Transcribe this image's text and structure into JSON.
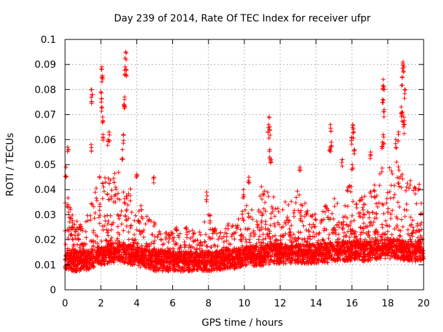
{
  "chart_data": {
    "type": "scatter",
    "title": "Day 239 of 2014, Rate Of TEC Index for receiver ufpr",
    "xlabel": "GPS time / hours",
    "ylabel": "ROTI / TECUs",
    "xlim": [
      0,
      20
    ],
    "ylim": [
      0,
      0.1
    ],
    "x_ticks": [
      0,
      2,
      4,
      6,
      8,
      10,
      12,
      14,
      16,
      18,
      20
    ],
    "y_ticks": [
      0,
      0.01,
      0.02,
      0.03,
      0.04,
      0.05,
      0.06,
      0.07,
      0.08,
      0.09,
      0.1
    ],
    "x_tick_labels": [
      "0",
      "2",
      "4",
      "6",
      "8",
      "10",
      "12",
      "14",
      "16",
      "18",
      "20"
    ],
    "y_tick_labels": [
      "0",
      "0.01",
      "0.02",
      "0.03",
      "0.04",
      "0.05",
      "0.06",
      "0.07",
      "0.08",
      "0.09",
      "0.1"
    ],
    "grid": true,
    "marker": "+",
    "color": "#ff0000",
    "x_data_range": [
      0,
      19
    ],
    "series": [
      {
        "name": "ROTI",
        "profile": {
          "hours": [
            0.0,
            0.5,
            1.0,
            1.5,
            2.0,
            2.5,
            3.0,
            3.5,
            4.0,
            4.5,
            5.0,
            5.5,
            6.0,
            6.5,
            7.0,
            7.5,
            8.0,
            8.5,
            9.0,
            9.5,
            10.0,
            10.5,
            11.0,
            11.5,
            12.0,
            12.5,
            13.0,
            13.5,
            14.0,
            14.5,
            15.0,
            15.5,
            16.0,
            16.5,
            17.0,
            17.5,
            18.0,
            18.5,
            19.0
          ],
          "baseline": [
            0.012,
            0.011,
            0.011,
            0.012,
            0.013,
            0.014,
            0.015,
            0.014,
            0.013,
            0.012,
            0.011,
            0.011,
            0.011,
            0.011,
            0.011,
            0.011,
            0.011,
            0.011,
            0.012,
            0.012,
            0.013,
            0.013,
            0.013,
            0.014,
            0.014,
            0.014,
            0.014,
            0.014,
            0.014,
            0.014,
            0.015,
            0.015,
            0.015,
            0.015,
            0.015,
            0.016,
            0.016,
            0.016,
            0.015
          ],
          "spread": [
            0.03,
            0.018,
            0.014,
            0.024,
            0.034,
            0.03,
            0.036,
            0.03,
            0.022,
            0.02,
            0.016,
            0.012,
            0.014,
            0.014,
            0.014,
            0.012,
            0.02,
            0.014,
            0.014,
            0.018,
            0.022,
            0.022,
            0.03,
            0.026,
            0.02,
            0.024,
            0.028,
            0.02,
            0.016,
            0.02,
            0.022,
            0.024,
            0.028,
            0.022,
            0.024,
            0.034,
            0.034,
            0.036,
            0.03
          ]
        },
        "peaks": [
          {
            "x": 0.15,
            "y": 0.057
          },
          {
            "x": 0.05,
            "y": 0.049
          },
          {
            "x": 1.48,
            "y": 0.08
          },
          {
            "x": 1.52,
            "y": 0.078
          },
          {
            "x": 1.45,
            "y": 0.058
          },
          {
            "x": 2.05,
            "y": 0.089
          },
          {
            "x": 2.08,
            "y": 0.085
          },
          {
            "x": 2.0,
            "y": 0.079
          },
          {
            "x": 2.02,
            "y": 0.075
          },
          {
            "x": 2.1,
            "y": 0.069
          },
          {
            "x": 2.12,
            "y": 0.062
          },
          {
            "x": 2.45,
            "y": 0.063
          },
          {
            "x": 2.4,
            "y": 0.06
          },
          {
            "x": 3.38,
            "y": 0.095
          },
          {
            "x": 3.35,
            "y": 0.089
          },
          {
            "x": 3.4,
            "y": 0.088
          },
          {
            "x": 3.32,
            "y": 0.077
          },
          {
            "x": 3.28,
            "y": 0.074
          },
          {
            "x": 3.25,
            "y": 0.062
          },
          {
            "x": 3.2,
            "y": 0.056
          },
          {
            "x": 4.0,
            "y": 0.046
          },
          {
            "x": 4.95,
            "y": 0.045
          },
          {
            "x": 7.9,
            "y": 0.039
          },
          {
            "x": 9.95,
            "y": 0.04
          },
          {
            "x": 10.25,
            "y": 0.045
          },
          {
            "x": 11.38,
            "y": 0.069
          },
          {
            "x": 11.35,
            "y": 0.066
          },
          {
            "x": 11.4,
            "y": 0.064
          },
          {
            "x": 11.42,
            "y": 0.056
          },
          {
            "x": 11.5,
            "y": 0.052
          },
          {
            "x": 13.1,
            "y": 0.049
          },
          {
            "x": 14.8,
            "y": 0.066
          },
          {
            "x": 14.85,
            "y": 0.059
          },
          {
            "x": 14.78,
            "y": 0.057
          },
          {
            "x": 15.45,
            "y": 0.052
          },
          {
            "x": 16.05,
            "y": 0.066
          },
          {
            "x": 16.1,
            "y": 0.063
          },
          {
            "x": 16.0,
            "y": 0.061
          },
          {
            "x": 16.15,
            "y": 0.056
          },
          {
            "x": 16.02,
            "y": 0.05
          },
          {
            "x": 17.05,
            "y": 0.055
          },
          {
            "x": 17.75,
            "y": 0.084
          },
          {
            "x": 17.78,
            "y": 0.081
          },
          {
            "x": 17.72,
            "y": 0.076
          },
          {
            "x": 17.8,
            "y": 0.072
          },
          {
            "x": 17.75,
            "y": 0.062
          },
          {
            "x": 17.7,
            "y": 0.059
          },
          {
            "x": 18.85,
            "y": 0.091
          },
          {
            "x": 18.9,
            "y": 0.089
          },
          {
            "x": 18.8,
            "y": 0.085
          },
          {
            "x": 18.95,
            "y": 0.08
          },
          {
            "x": 18.75,
            "y": 0.073
          },
          {
            "x": 18.82,
            "y": 0.071
          },
          {
            "x": 18.9,
            "y": 0.069
          },
          {
            "x": 18.92,
            "y": 0.066
          },
          {
            "x": 18.6,
            "y": 0.063
          },
          {
            "x": 18.45,
            "y": 0.06
          }
        ],
        "point_count": 4200,
        "seed": 239
      }
    ]
  }
}
